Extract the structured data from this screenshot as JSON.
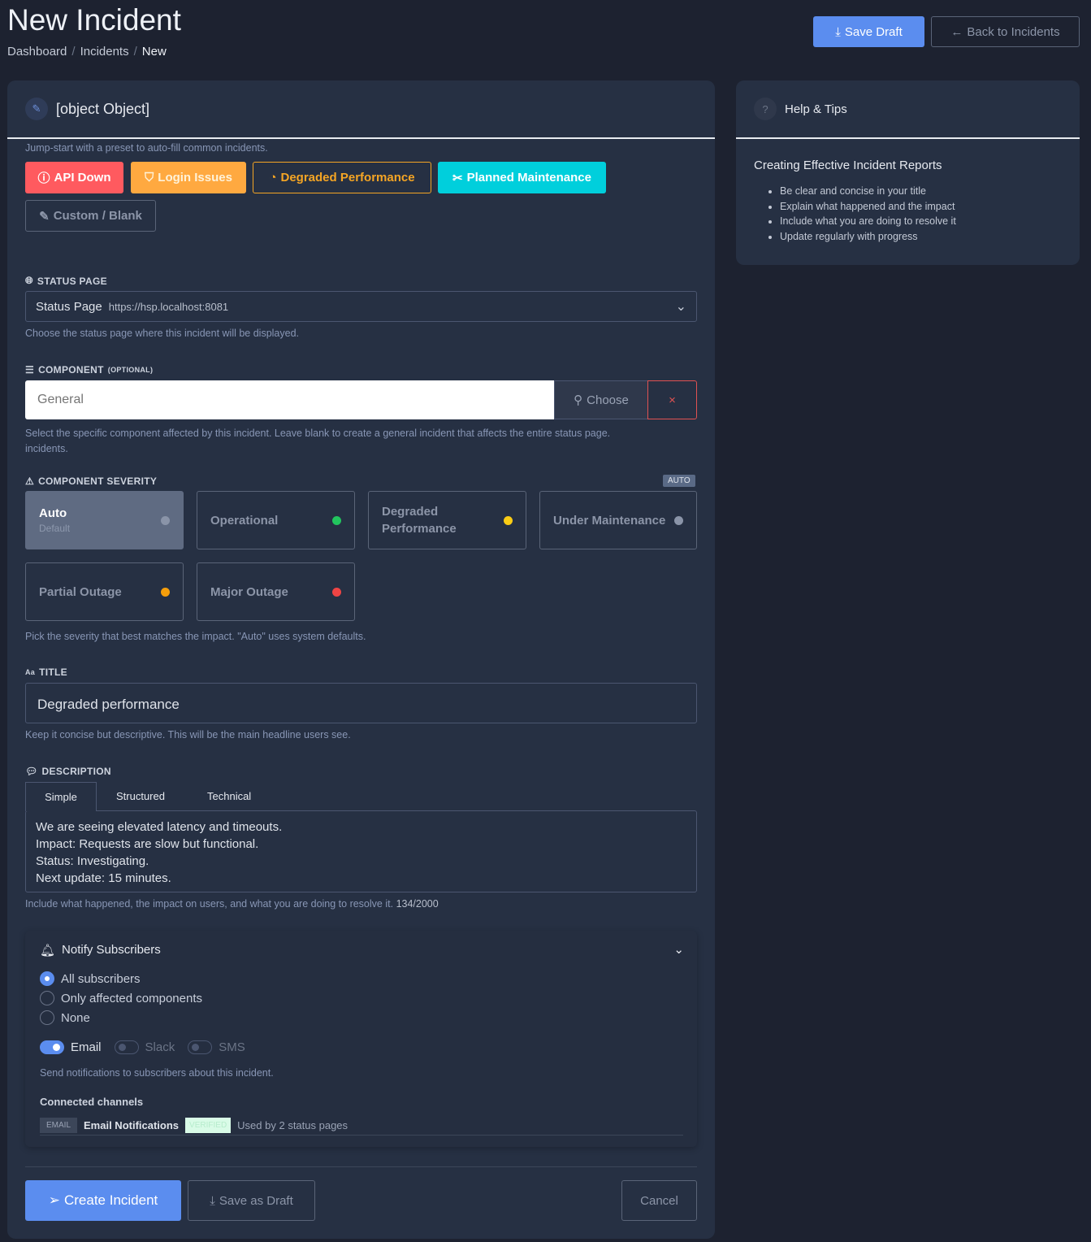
{
  "header": {
    "title": "New Incident",
    "breadcrumb": [
      "Dashboard",
      "Incidents",
      "New"
    ],
    "save_draft": "Save Draft",
    "back": "Back to Incidents"
  },
  "details": {
    "title": {
      "label": "TITLE",
      "value": "Degraded performance",
      "hint": "Keep it concise but descriptive. This will be the main headline users see."
    },
    "preset_hint": "Jump-start with a preset to auto-fill common incidents.",
    "presets": [
      {
        "label": "API Down",
        "color": "#ff5a5f"
      },
      {
        "label": "Login Issues",
        "color": "#ffa940"
      },
      {
        "label": "Degraded Performance",
        "color": "#f5a524"
      },
      {
        "label": "Planned Maintenance",
        "color": "#00cfdc"
      },
      {
        "label": "Custom / Blank",
        "color": "#5a6478"
      }
    ],
    "status_page": {
      "label": "STATUS PAGE",
      "value": "Status Page",
      "url": "https://hsp.localhost:8081",
      "hint": "Choose the status page where this incident will be displayed."
    },
    "component": {
      "label": "COMPONENT",
      "optional": "(OPTIONAL)",
      "placeholder": "General",
      "choose": "Choose",
      "clear": "×",
      "hint": "Select the specific component affected by this incident. Leave blank to create a general incident that affects the entire status page.",
      "hint2": "incidents."
    },
    "severity": {
      "label": "COMPONENT SEVERITY",
      "badge": "AUTO",
      "hint": "Pick the severity that best matches the impact. \"Auto\" uses system defaults.",
      "options": [
        {
          "label": "Auto",
          "sub": "Default",
          "color": "#8a94a8",
          "selected": true
        },
        {
          "label": "Operational",
          "color": "#22c55e"
        },
        {
          "label": "Degraded Performance",
          "color": "#facc15"
        },
        {
          "label": "Under Maintenance",
          "color": "#8a94a8"
        },
        {
          "label": "Partial Outage",
          "color": "#f59e0b"
        },
        {
          "label": "Major Outage",
          "color": "#ef4444"
        }
      ]
    },
    "description": {
      "label": "DESCRIPTION",
      "tabs": [
        "Simple",
        "Structured",
        "Technical"
      ],
      "active_tab": "Simple",
      "lines": [
        "We are seeing elevated latency and timeouts.",
        "Impact: Requests are slow but functional.",
        "Status: Investigating.",
        "Next update: 15 minutes."
      ],
      "hint": "Include what happened, the impact on users, and what you are doing to resolve it.",
      "count": "134/2000"
    },
    "notify": {
      "title": "Notify Subscribers",
      "options": [
        "All subscribers",
        "Only affected components",
        "None"
      ],
      "selected": "All subscribers",
      "channels": [
        {
          "label": "Email",
          "on": true
        },
        {
          "label": "Slack",
          "on": false
        },
        {
          "label": "SMS",
          "on": false
        }
      ],
      "hint": "Send notifications to subscribers about this incident.",
      "connected_title": "Connected channels",
      "connected": {
        "type": "EMAIL",
        "name": "Email Notifications",
        "badge": "VERIFIED",
        "usage": "Used by 2 status pages"
      }
    },
    "actions": {
      "create": "Create Incident",
      "save": "Save as Draft",
      "cancel": "Cancel"
    }
  },
  "help": {
    "title": "Help & Tips",
    "subtitle": "Creating Effective Incident Reports",
    "tips": [
      "Be clear and concise in your title",
      "Explain what happened and the impact",
      "Include what you are doing to resolve it",
      "Update regularly with progress"
    ]
  }
}
